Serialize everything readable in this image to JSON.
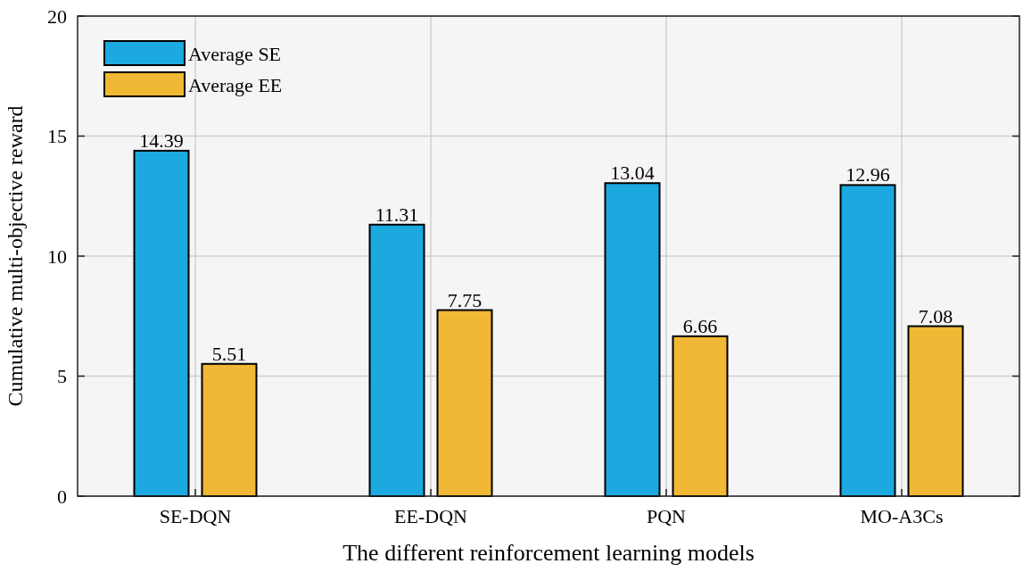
{
  "chart_data": {
    "type": "bar",
    "xlabel": "The different reinforcement learning models",
    "ylabel": "Cumulative multi-objective reward",
    "categories": [
      "SE-DQN",
      "EE-DQN",
      "PQN",
      "MO-A3Cs"
    ],
    "series": [
      {
        "name": "Average SE",
        "color": "#1ba9e0",
        "values": [
          14.39,
          11.31,
          13.04,
          12.96
        ]
      },
      {
        "name": "Average EE",
        "color": "#f0b834",
        "values": [
          5.51,
          7.75,
          6.66,
          7.08
        ]
      }
    ],
    "ylim": [
      0,
      20
    ],
    "yticks": [
      0,
      5,
      10,
      15,
      20
    ],
    "grid": true,
    "legend": "top left",
    "data_labels": true
  }
}
